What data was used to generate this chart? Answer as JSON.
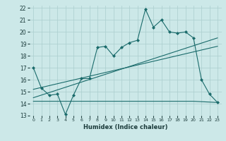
{
  "xlabel": "Humidex (Indice chaleur)",
  "xlim": [
    -0.5,
    23.5
  ],
  "ylim": [
    13,
    22.2
  ],
  "yticks": [
    13,
    14,
    15,
    16,
    17,
    18,
    19,
    20,
    21,
    22
  ],
  "xticks": [
    0,
    1,
    2,
    3,
    4,
    5,
    6,
    7,
    8,
    9,
    10,
    11,
    12,
    13,
    14,
    15,
    16,
    17,
    18,
    19,
    20,
    21,
    22,
    23
  ],
  "bg_color": "#cce8e8",
  "line_color": "#1a6b6b",
  "grid_color": "#aacece",
  "curve1_x": [
    0,
    1,
    2,
    3,
    4,
    5,
    6,
    7,
    8,
    9,
    10,
    11,
    12,
    13,
    14,
    15,
    16,
    17,
    18,
    19,
    20,
    21,
    22,
    23
  ],
  "curve1_y": [
    17.0,
    15.3,
    14.7,
    14.8,
    13.1,
    14.7,
    16.1,
    16.1,
    18.7,
    18.8,
    18.0,
    18.7,
    19.1,
    19.3,
    21.9,
    20.4,
    21.0,
    20.0,
    19.9,
    20.0,
    19.5,
    16.0,
    14.8,
    14.1
  ],
  "curve2_x": [
    0,
    23
  ],
  "curve2_y": [
    14.5,
    19.5
  ],
  "curve3_x": [
    0,
    23
  ],
  "curve3_y": [
    15.2,
    18.8
  ],
  "curve4_x": [
    0,
    20,
    23
  ],
  "curve4_y": [
    14.2,
    14.2,
    14.1
  ]
}
